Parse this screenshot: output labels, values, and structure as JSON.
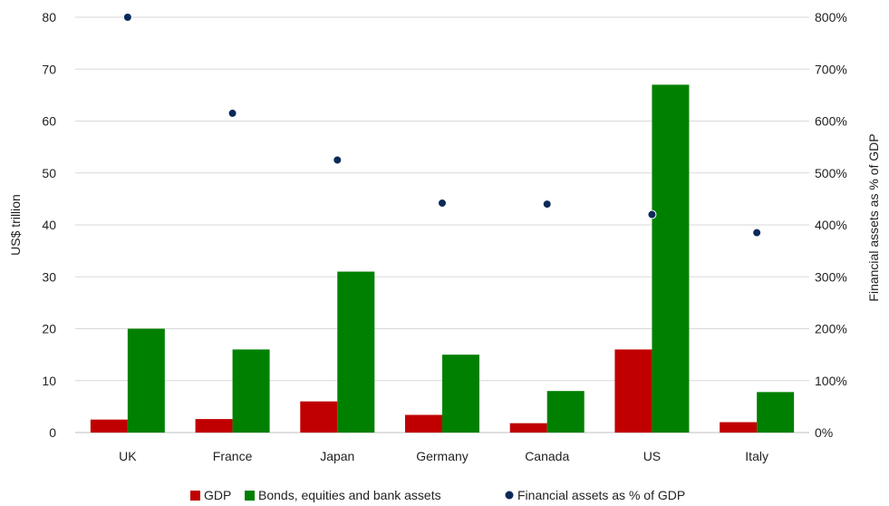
{
  "chart_data": {
    "type": "bar",
    "categories": [
      "UK",
      "France",
      "Japan",
      "Germany",
      "Canada",
      "US",
      "Italy"
    ],
    "series": [
      {
        "name": "GDP",
        "kind": "bar",
        "axis": "left",
        "color": "#c00000",
        "values": [
          2.5,
          2.6,
          6.0,
          3.4,
          1.8,
          16.0,
          2.0
        ]
      },
      {
        "name": "Bonds, equities and bank assets",
        "kind": "bar",
        "axis": "left",
        "color": "#008000",
        "values": [
          20,
          16,
          31,
          15,
          8,
          67,
          7.8
        ]
      },
      {
        "name": "Financial assets as % of GDP",
        "kind": "scatter",
        "axis": "right",
        "color": "#0b2a5a",
        "values": [
          800,
          615,
          525,
          442,
          440,
          420,
          385
        ]
      }
    ],
    "ylabel": "US$ trillion",
    "y2label": "Financial assets as % of GDP",
    "ylim": [
      0,
      80
    ],
    "y2lim": [
      0,
      800
    ],
    "yticks": [
      "0",
      "10",
      "20",
      "30",
      "40",
      "50",
      "60",
      "70",
      "80"
    ],
    "y2ticks": [
      "0%",
      "100%",
      "200%",
      "300%",
      "400%",
      "500%",
      "600%",
      "700%",
      "800%"
    ],
    "grid": true,
    "legend_position": "bottom"
  }
}
